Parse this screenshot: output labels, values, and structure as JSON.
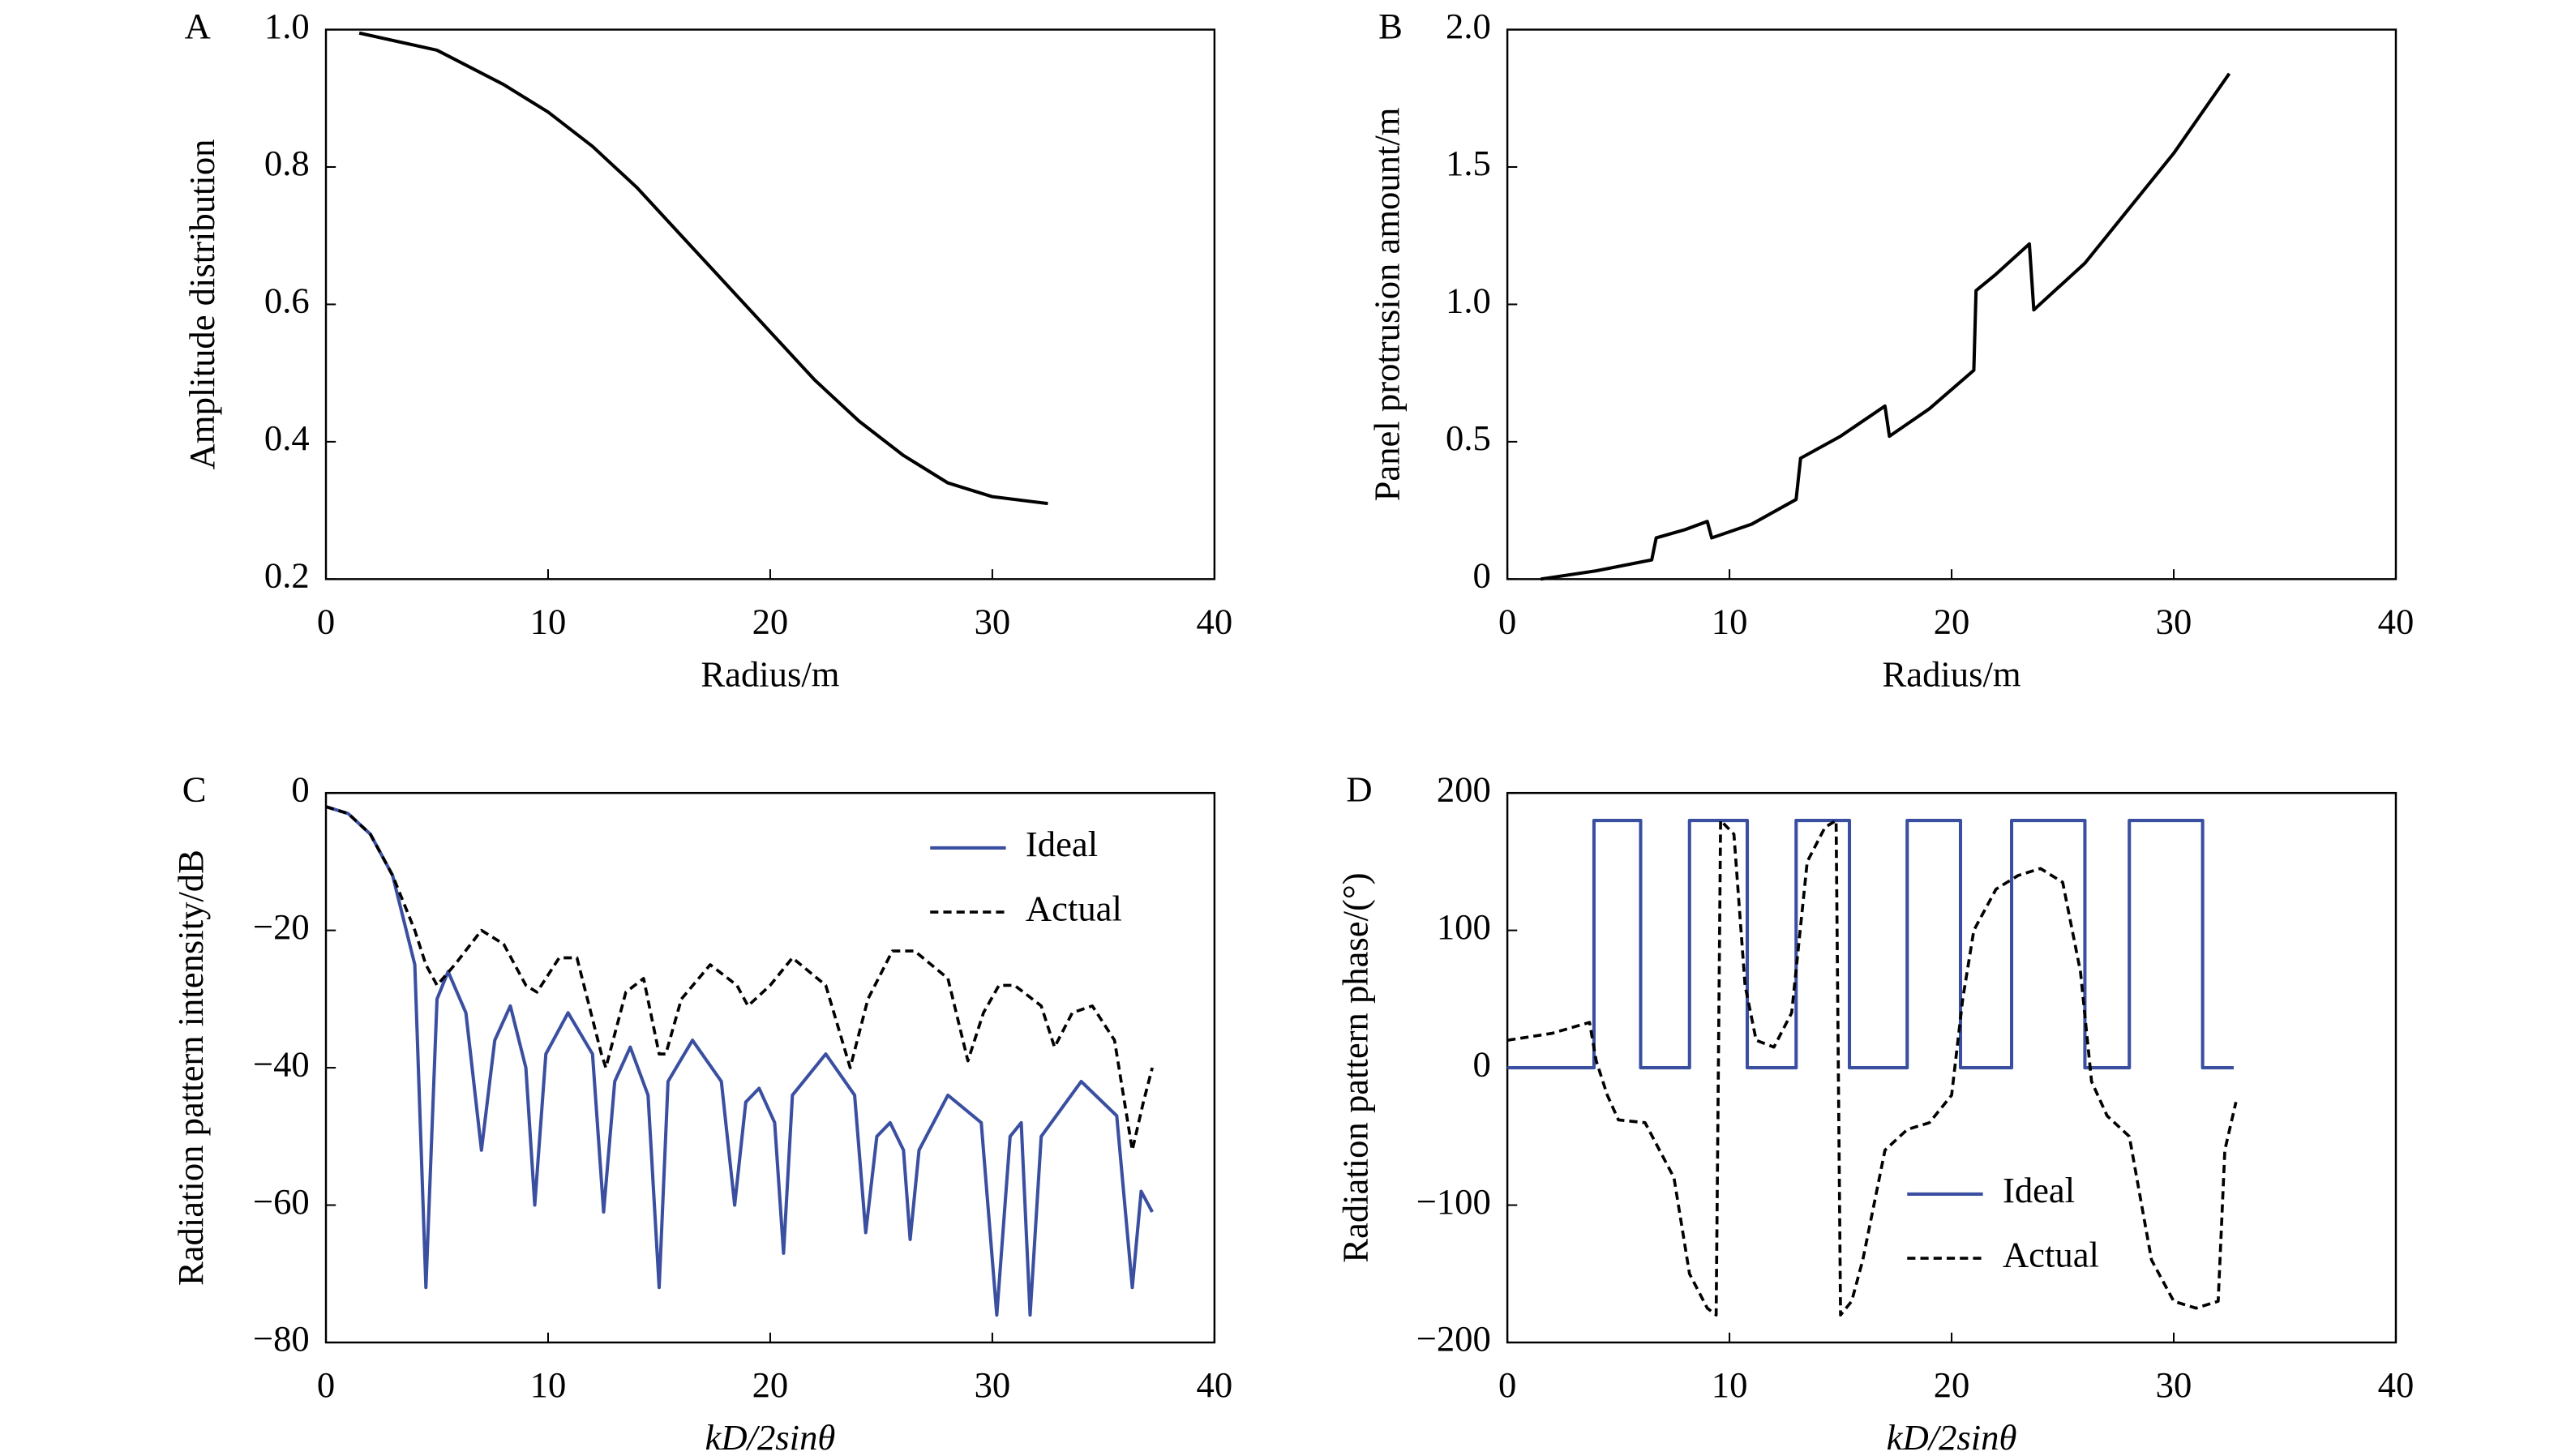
{
  "chart_data": [
    {
      "type": "line",
      "panel": "A",
      "xlabel": "Radius/m",
      "ylabel": "Amplitude distribution",
      "xlim": [
        0,
        40
      ],
      "ylim": [
        0.2,
        1.0
      ],
      "xticks": [
        0,
        10,
        20,
        30,
        40
      ],
      "yticks": [
        0.2,
        0.4,
        0.6,
        0.8,
        {
          "value": 1.0,
          "label": "1.0"
        }
      ],
      "color": "#000000",
      "x": [
        1.5,
        5,
        8,
        10,
        12,
        14,
        16,
        18,
        20,
        22,
        24,
        26,
        28,
        30,
        32.5
      ],
      "values": [
        0.995,
        0.97,
        0.92,
        0.88,
        0.83,
        0.77,
        0.7,
        0.63,
        0.56,
        0.49,
        0.43,
        0.38,
        0.34,
        0.32,
        0.31
      ]
    },
    {
      "type": "line",
      "panel": "B",
      "xlabel": "Radius/m",
      "ylabel": "Panel protrusion amount/m",
      "xlim": [
        0,
        40
      ],
      "ylim": [
        0,
        2
      ],
      "xticks": [
        0,
        10,
        20,
        30,
        40
      ],
      "yticks": [
        0,
        0.5,
        {
          "value": 1,
          "label": "1.0"
        },
        1.5,
        {
          "value": 2,
          "label": "2.0"
        }
      ],
      "color": "#000000",
      "x": [
        1.5,
        4,
        6.5,
        6.7,
        8,
        9,
        9.2,
        11,
        13,
        13.2,
        15,
        17,
        17.2,
        19,
        21,
        21.1,
        22,
        23.5,
        23.7,
        26,
        28,
        30,
        32.5
      ],
      "values": [
        0,
        0.03,
        0.07,
        0.15,
        0.18,
        0.21,
        0.15,
        0.2,
        0.29,
        0.44,
        0.52,
        0.63,
        0.52,
        0.62,
        0.76,
        1.05,
        1.11,
        1.22,
        0.98,
        1.15,
        1.35,
        1.55,
        1.84
      ]
    },
    {
      "type": "line",
      "panel": "C",
      "xlabel": "kD/2sinθ",
      "ylabel": "Radiation pattern intensity/dB",
      "xlim": [
        0,
        40
      ],
      "ylim": [
        -80,
        0
      ],
      "xticks": [
        0,
        10,
        20,
        30,
        40
      ],
      "yticks": [
        {
          "value": -80,
          "label": "−80"
        },
        {
          "value": -60,
          "label": "−60"
        },
        {
          "value": -40,
          "label": "−40"
        },
        {
          "value": -20,
          "label": "−20"
        },
        0
      ],
      "legend": "upper right",
      "series": [
        {
          "name": "Ideal",
          "color": "#3a4fa0",
          "style": "solid",
          "x": [
            0,
            1,
            2,
            3,
            4,
            4.5,
            5,
            5.5,
            6.3,
            7,
            7.6,
            8.3,
            9,
            9.4,
            9.9,
            10.9,
            12,
            12.5,
            13,
            13.7,
            14.5,
            15,
            15.4,
            16.5,
            17.8,
            18.4,
            18.9,
            19.5,
            20.2,
            20.6,
            21,
            22.5,
            23.8,
            24.3,
            24.8,
            25.4,
            26,
            26.3,
            26.7,
            28,
            29.5,
            30.2,
            30.8,
            31.3,
            31.7,
            32.2,
            34,
            35.6,
            36.3,
            36.7,
            37.2
          ],
          "values": [
            -2,
            -3,
            -6,
            -12,
            -25,
            -72,
            -30,
            -26,
            -32,
            -52,
            -36,
            -31,
            -40,
            -60,
            -38,
            -32,
            -38,
            -61,
            -42,
            -37,
            -44,
            -72,
            -42,
            -36,
            -42,
            -60,
            -45,
            -43,
            -48,
            -67,
            -44,
            -38,
            -44,
            -64,
            -50,
            -48,
            -52,
            -65,
            -52,
            -44,
            -48,
            -76,
            -50,
            -48,
            -76,
            -50,
            -42,
            -47,
            -72,
            -58,
            -61
          ]
        },
        {
          "name": "Actual",
          "color": "#000000",
          "style": "dashed",
          "x": [
            0,
            1,
            2,
            3,
            4,
            4.5,
            5,
            5.8,
            7,
            8,
            9,
            9.5,
            10.5,
            11.3,
            12.4,
            12.6,
            13.5,
            14.3,
            15,
            15.3,
            16,
            17.3,
            18.5,
            19,
            20,
            21,
            22.5,
            23.6,
            24.4,
            25.5,
            26.5,
            28,
            28.9,
            29.6,
            30.3,
            31,
            32.2,
            32.8,
            33.6,
            34.5,
            35.5,
            36.3,
            36.8,
            37.2
          ],
          "values": [
            -2,
            -3,
            -6,
            -12,
            -20,
            -25,
            -28,
            -25,
            -20,
            -22,
            -28,
            -29,
            -24,
            -24,
            -38,
            -40,
            -29,
            -27,
            -38,
            -38,
            -30,
            -25,
            -28,
            -31,
            -28,
            -24,
            -28,
            -40,
            -30,
            -23,
            -23,
            -27,
            -39,
            -32,
            -28,
            -28,
            -31,
            -37,
            -32,
            -31,
            -36,
            -52,
            -45,
            -40
          ]
        }
      ]
    },
    {
      "type": "line",
      "panel": "D",
      "xlabel": "kD/2sinθ",
      "ylabel": "Radiation pattern phase/(°)",
      "xlim": [
        0,
        40
      ],
      "ylim": [
        -200,
        200
      ],
      "xticks": [
        0,
        10,
        20,
        30,
        40
      ],
      "yticks": [
        {
          "value": -200,
          "label": "−200"
        },
        {
          "value": -100,
          "label": "−100"
        },
        0,
        100,
        200
      ],
      "legend": "lower center",
      "series": [
        {
          "name": "Ideal",
          "color": "#3a4fa0",
          "style": "solid",
          "x": [
            0,
            3.9,
            3.9,
            6,
            6,
            8.2,
            8.2,
            10.8,
            10.8,
            13,
            13,
            15.4,
            15.4,
            18,
            18,
            20.4,
            20.4,
            22.7,
            22.7,
            26,
            26,
            28,
            28,
            31.3,
            31.3,
            32.7
          ],
          "values": [
            0,
            0,
            180,
            180,
            0,
            0,
            180,
            180,
            0,
            0,
            180,
            180,
            0,
            0,
            180,
            180,
            0,
            0,
            180,
            180,
            0,
            0,
            180,
            180,
            0,
            0
          ]
        },
        {
          "name": "Actual",
          "color": "#000000",
          "style": "dashed",
          "x": [
            0,
            2,
            3.7,
            4,
            4.5,
            5,
            6.2,
            7.5,
            8.2,
            9,
            9.4,
            9.6,
            10.2,
            10.7,
            11.2,
            12,
            12.8,
            13.5,
            14.3,
            14.8,
            15,
            15.5,
            16,
            17,
            18,
            19,
            20,
            20.5,
            21,
            22,
            23,
            24,
            25,
            25.8,
            26.3,
            27,
            28,
            29,
            30,
            31,
            32,
            32.3,
            32.8
          ],
          "values": [
            20,
            25,
            33,
            5,
            -20,
            -38,
            -40,
            -80,
            -150,
            -175,
            -180,
            180,
            170,
            60,
            20,
            15,
            40,
            150,
            175,
            180,
            -180,
            -170,
            -140,
            -60,
            -45,
            -40,
            -20,
            50,
            100,
            130,
            140,
            145,
            135,
            70,
            -10,
            -35,
            -50,
            -140,
            -170,
            -175,
            -170,
            -60,
            -25
          ]
        }
      ]
    }
  ]
}
